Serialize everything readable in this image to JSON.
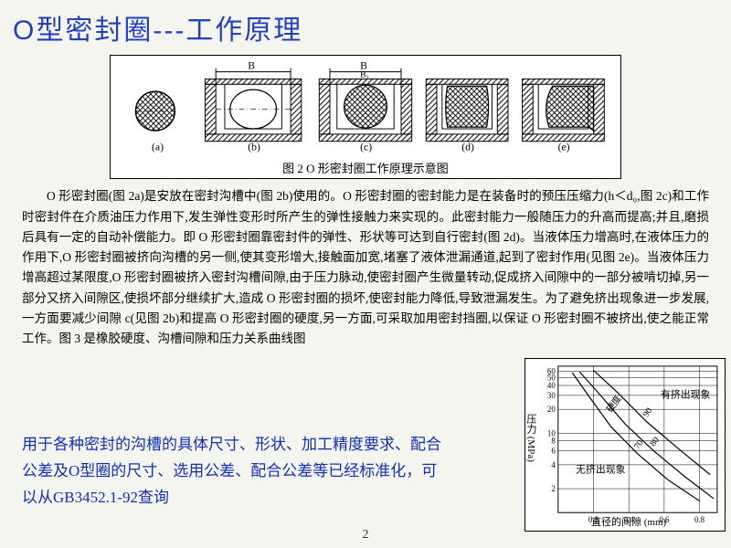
{
  "title": "O型密封圈---工作原理",
  "diagram": {
    "caption": "图 2  O 形密封圈工作原理示意图",
    "sublabels": [
      "(a)",
      "(b)",
      "(c)",
      "(d)",
      "(e)"
    ],
    "dim_labels": [
      "B",
      "B",
      "B₁"
    ],
    "hatch_color": "#000000",
    "bg": "#ffffff"
  },
  "body_para": "O 形密封圈(图 2a)是安放在密封沟槽中(图 2b)使用的。O 形密封圈的密封能力是在装备时的预压压缩力(h＜d₀,图 2c)和工作时密封件在介质油压力作用下,发生弹性变形时所产生的弹性接触力来实现的。此密封能力一般随压力的升高而提高;并且,磨损后具有一定的自动补偿能力。即 O 形密封圈靠密封件的弹性、形状等可达到自行密封(图 2d)。当液体压力增高时,在液体压力的作用下,O 形密封圈被挤向沟槽的另一侧,使其变形增大,接触面加宽,堵塞了液体泄漏通道,起到了密封作用(见图 2e)。当液体压力增高超过某限度,O 形密封圈被挤入密封沟槽间隙,由于压力脉动,使密封圈产生微量转动,促成挤入间隙中的一部分被啃切掉,另一部分又挤入间隙区,使损坏部分继续扩大,造成 O 形密封圈的损坏,使密封能力降低,导致泄漏发生。为了避免挤出现象进一步发展,一方面要减少间隙 c(见图 2b)和提高 O 形密封圈的硬度,另一方面,可采取加用密封挡圈,以保证 O 形密封圈不被挤出,使之能正常工作。图 3 是橡胶硬度、沟槽间隙和压力关系曲线图",
  "note": "用于各种密封的沟槽的具体尺寸、形状、加工精度要求、配合公差及O型圈的尺寸、选用公差、配合公差等已经标准化，可以从GB3452.1-92查询",
  "page_number": "2",
  "chart": {
    "type": "line",
    "title": "",
    "xlabel": "直径的间隙 (mm)",
    "ylabel": "压力 (MPa)",
    "x_ticks": [
      0.2,
      0.4,
      0.6,
      0.8
    ],
    "y_ticks": [
      2,
      4,
      6,
      8,
      10,
      20,
      30,
      40,
      50,
      60
    ],
    "xlim": [
      0,
      0.9
    ],
    "ylim": [
      1,
      70
    ],
    "yscale": "log",
    "region_upper": "有挤出现象",
    "region_lower": "无挤出现象",
    "curve_labels": [
      "70",
      "80",
      "90",
      "硬度"
    ],
    "curves": [
      {
        "label": "70",
        "points": [
          [
            0.08,
            58
          ],
          [
            0.18,
            28
          ],
          [
            0.3,
            12
          ],
          [
            0.45,
            5.5
          ],
          [
            0.62,
            2.6
          ],
          [
            0.8,
            1.4
          ]
        ]
      },
      {
        "label": "80",
        "points": [
          [
            0.12,
            60
          ],
          [
            0.24,
            30
          ],
          [
            0.38,
            13
          ],
          [
            0.54,
            6.0
          ],
          [
            0.72,
            2.8
          ],
          [
            0.88,
            1.5
          ]
        ]
      },
      {
        "label": "90",
        "points": [
          [
            0.2,
            62
          ],
          [
            0.34,
            32
          ],
          [
            0.5,
            14
          ],
          [
            0.68,
            6.4
          ],
          [
            0.86,
            3.0
          ]
        ]
      }
    ],
    "line_color": "#000000",
    "grid_color": "#000000",
    "background_color": "#ffffff",
    "axis_fontsize": 9,
    "line_width": 1.2
  }
}
